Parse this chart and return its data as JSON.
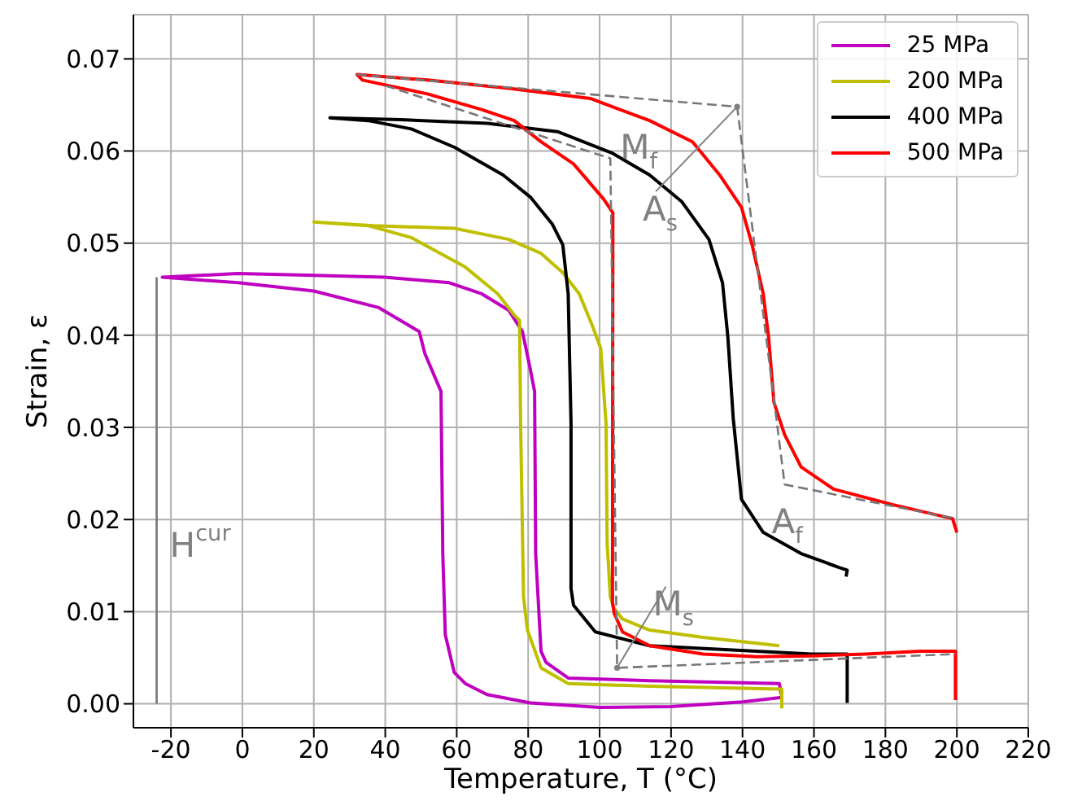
{
  "chart_data": {
    "type": "line",
    "xlabel": "Temperature, T (°C)",
    "ylabel": "Strain, ε",
    "xlim": [
      -30.5,
      220
    ],
    "ylim": [
      -0.0026,
      0.0748
    ],
    "xticks": [
      -20,
      0,
      20,
      40,
      60,
      80,
      100,
      120,
      140,
      160,
      180,
      200,
      220
    ],
    "yticks": [
      {
        "value": 0,
        "label": "0.00"
      },
      {
        "value": 0.01,
        "label": "0.01"
      },
      {
        "value": 0.02,
        "label": "0.02"
      },
      {
        "value": 0.03,
        "label": "0.03"
      },
      {
        "value": 0.04,
        "label": "0.04"
      },
      {
        "value": 0.05,
        "label": "0.05"
      },
      {
        "value": 0.06,
        "label": "0.06"
      },
      {
        "value": 0.07,
        "label": "0.07"
      }
    ],
    "grid": true,
    "legend": "top right",
    "marker": "none",
    "line_style": "solid",
    "series": [
      {
        "name": "25 MPa",
        "color": "#c000c0",
        "x": [
          151,
          140,
          120,
          100,
          80.6,
          68.5,
          62.4,
          59.3,
          56.8,
          56.1,
          55.6,
          51.1,
          49.5,
          44.3,
          38.2,
          20,
          -1.2,
          -22.4,
          -1.2,
          20,
          39.7,
          57.9,
          67,
          74.6,
          78.4,
          80.6,
          81.8,
          82.1,
          83.6,
          85,
          91.2,
          114,
          150.3,
          151
        ],
        "values": [
          0.0007,
          0.0002,
          -0.0003,
          -0.0004,
          0.0001,
          0.001,
          0.0022,
          0.0034,
          0.0075,
          0.0163,
          0.0339,
          0.038,
          0.0404,
          0.0416,
          0.043,
          0.0448,
          0.0457,
          0.0463,
          0.0467,
          0.0465,
          0.0463,
          0.0457,
          0.0445,
          0.0427,
          0.0404,
          0.0363,
          0.0339,
          0.0163,
          0.0057,
          0.0045,
          0.0028,
          0.0025,
          0.0022,
          0.0008
        ]
      },
      {
        "name": "200 MPa",
        "color": "#bfbf00",
        "x": [
          151,
          151,
          150.3,
          114,
          91.2,
          83.6,
          79.8,
          78.7,
          77.9,
          77.6,
          76.1,
          71.5,
          62.4,
          47.3,
          35.2,
          20,
          36.7,
          59.4,
          74.6,
          83.6,
          89.7,
          94.3,
          98,
          100.3,
          101.8,
          102.1,
          103,
          104,
          106.4,
          114,
          129,
          150.3
        ],
        "values": [
          -0.0005,
          0.0016,
          0.0016,
          0.0019,
          0.0022,
          0.0039,
          0.008,
          0.0116,
          0.03,
          0.0416,
          0.0422,
          0.0445,
          0.0474,
          0.0506,
          0.0519,
          0.0523,
          0.0519,
          0.0516,
          0.0504,
          0.0489,
          0.0468,
          0.0445,
          0.041,
          0.0386,
          0.0304,
          0.0175,
          0.0116,
          0.0104,
          0.0092,
          0.008,
          0.0072,
          0.0063
        ]
      },
      {
        "name": "400 MPa",
        "color": "#000000",
        "x": [
          169.3,
          169.3,
          159.4,
          114,
          98.8,
          92.7,
          92,
          92,
          91.2,
          89.7,
          86.7,
          80.6,
          73,
          59.4,
          47.3,
          35.2,
          24.5,
          44.3,
          68.5,
          88.2,
          103.4,
          114,
          123,
          130.6,
          134.4,
          135.9,
          137.4,
          139.7,
          145.8,
          156.4,
          167,
          169.3,
          169
        ],
        "values": [
          0.0001,
          0.0054,
          0.0054,
          0.0063,
          0.0078,
          0.0107,
          0.0125,
          0.0304,
          0.0445,
          0.0498,
          0.0521,
          0.055,
          0.0574,
          0.0604,
          0.0624,
          0.0633,
          0.0636,
          0.0634,
          0.063,
          0.0621,
          0.0598,
          0.0574,
          0.0545,
          0.0504,
          0.0457,
          0.0398,
          0.031,
          0.0222,
          0.0186,
          0.0163,
          0.0148,
          0.0145,
          0.0138
        ]
      },
      {
        "name": "500 MPa",
        "color": "#ff0000",
        "x": [
          199.6,
          199.6,
          189.7,
          174.5,
          159.4,
          144.2,
          129,
          114,
          106.4,
          104.1,
          103.6,
          103.7,
          101.1,
          92.7,
          83.6,
          76.1,
          67,
          51.8,
          33.6,
          32.1,
          51.8,
          74.6,
          97.4,
          114,
          126,
          133.6,
          139.7,
          142.7,
          145.8,
          147.3,
          148.8,
          151.8,
          156.4,
          165.5,
          182.2,
          198.8,
          200
        ],
        "values": [
          0.0004,
          0.0057,
          0.0057,
          0.0054,
          0.0052,
          0.0051,
          0.0054,
          0.0063,
          0.0078,
          0.0098,
          0.011,
          0.0533,
          0.0548,
          0.0586,
          0.061,
          0.0633,
          0.0645,
          0.0662,
          0.0677,
          0.0683,
          0.0677,
          0.0668,
          0.0657,
          0.0633,
          0.061,
          0.0574,
          0.0539,
          0.0498,
          0.0445,
          0.0398,
          0.0327,
          0.0292,
          0.0257,
          0.0233,
          0.0216,
          0.0201,
          0.0186
        ]
      },
      {
        "color": "#777777",
        "line_style": "dashed",
        "x": [
          32,
          138.5,
          151.8,
          199.6
        ],
        "values": [
          0.0683,
          0.0648,
          0.0238,
          0.0201
        ]
      },
      {
        "color": "#777777",
        "line_style": "dashed",
        "x": [
          40,
          103,
          104.9,
          199.6
        ],
        "values": [
          0.0671,
          0.0592,
          0.0039,
          0.0054
        ]
      },
      {
        "color": "#777777",
        "line_style": "solid",
        "x": [
          -24,
          -24
        ],
        "values": [
          0.0463,
          0.0
        ]
      }
    ],
    "annotations": [
      {
        "text": "M$_{f}$",
        "x": 103,
        "y": 0.0592
      },
      {
        "text": "A$_{s}$",
        "x": 138.5,
        "y": 0.0648
      },
      {
        "text": "A$_{f}$",
        "x": 151.8,
        "y": 0.0238
      },
      {
        "text": "M$_{s}$",
        "x": 104.9,
        "y": 0.0039
      },
      {
        "text": "H$^{cur}$",
        "x": -24,
        "y": 0.017
      }
    ]
  }
}
